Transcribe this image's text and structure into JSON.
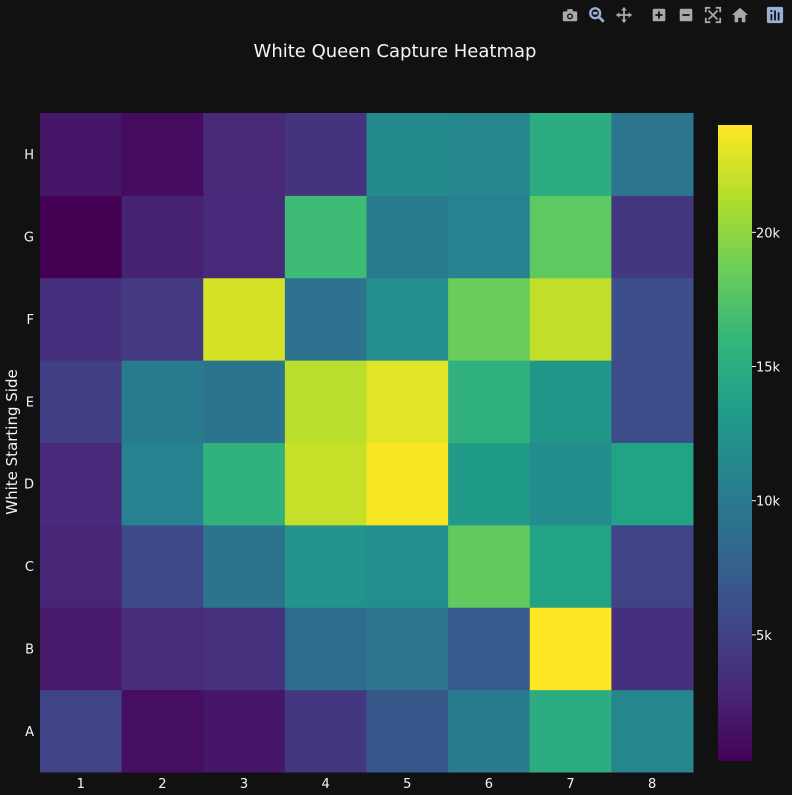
{
  "colors": {
    "background": "#111111",
    "text": "#f2f5fa",
    "modebar_icon": "#a9a9a9",
    "modebar_active": "#9ab0d6",
    "colorscale": "Viridis"
  },
  "modebar": {
    "icons": [
      "camera-icon",
      "zoom-icon",
      "pan-icon",
      "zoom-in-icon",
      "zoom-out-icon",
      "autoscale-icon",
      "home-icon",
      "plotly-logo-icon"
    ]
  },
  "chart_data": {
    "type": "heatmap",
    "title": "White Queen Capture Heatmap",
    "xlabel": "",
    "ylabel": "White Starting Side",
    "x": [
      "1",
      "2",
      "3",
      "4",
      "5",
      "6",
      "7",
      "8"
    ],
    "y": [
      "A",
      "B",
      "C",
      "D",
      "E",
      "F",
      "G",
      "H"
    ],
    "z": [
      [
        5000,
        1200,
        1800,
        4200,
        6800,
        10200,
        15000,
        11200
      ],
      [
        2000,
        3300,
        3600,
        8700,
        9500,
        7000,
        24000,
        3500
      ],
      [
        2700,
        5500,
        9300,
        12500,
        12000,
        18200,
        14000,
        5000
      ],
      [
        3200,
        10800,
        15500,
        22000,
        23800,
        13200,
        11800,
        14000
      ],
      [
        4600,
        10200,
        9300,
        21500,
        23000,
        15500,
        12800,
        5800
      ],
      [
        3500,
        4300,
        22500,
        9200,
        12000,
        18500,
        21800,
        6000
      ],
      [
        300,
        2500,
        3200,
        16500,
        10200,
        10800,
        18000,
        4200
      ],
      [
        1800,
        1000,
        3000,
        3800,
        11500,
        11300,
        15000,
        9500
      ]
    ],
    "zmin": 300,
    "zmax": 24000,
    "colorbar": {
      "tickvals": [
        5000,
        10000,
        15000,
        20000
      ],
      "ticktext": [
        "5k",
        "10k",
        "15k",
        "20k"
      ]
    },
    "grid": false
  }
}
